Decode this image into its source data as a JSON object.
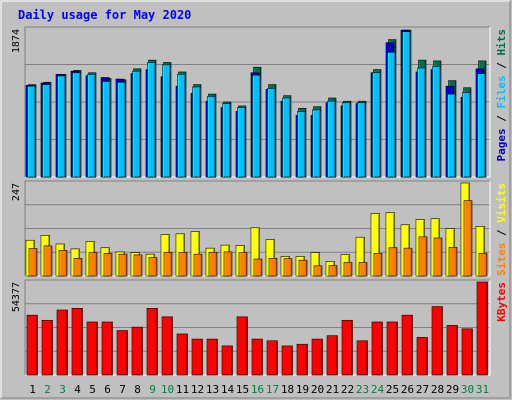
{
  "title": "Daily usage for May 2020",
  "colors": {
    "background": "#c0c0c0",
    "title": "#0000ff",
    "hits": "#006f4f",
    "files": "#00c0ff",
    "pages": "#0000c0",
    "visits": "#ffff00",
    "sites": "#ff8000",
    "kbytes": "#ff0000",
    "weekend_day": "#008040",
    "weekday": "#000000"
  },
  "chart_data": [
    {
      "type": "bar",
      "panel": "top",
      "ymax_label": "1874",
      "ylim": [
        0,
        1874
      ],
      "legend": [
        "Pages",
        "Files",
        "Hits"
      ],
      "legend_separator": " / ",
      "categories": [
        "1",
        "2",
        "3",
        "4",
        "5",
        "6",
        "7",
        "8",
        "9",
        "10",
        "11",
        "12",
        "13",
        "14",
        "15",
        "16",
        "17",
        "18",
        "19",
        "20",
        "21",
        "22",
        "23",
        "24",
        "25",
        "26",
        "27",
        "28",
        "29",
        "30",
        "31"
      ],
      "series": [
        {
          "name": "Hits",
          "values": [
            1170,
            1200,
            1300,
            1350,
            1320,
            1250,
            1230,
            1370,
            1480,
            1450,
            1330,
            1170,
            1050,
            950,
            900,
            1390,
            1170,
            1030,
            870,
            890,
            1000,
            960,
            960,
            1360,
            1740,
            1860,
            1480,
            1470,
            1220,
            1130,
            1470
          ]
        },
        {
          "name": "Files",
          "values": [
            1150,
            1170,
            1280,
            1320,
            1300,
            1210,
            1200,
            1340,
            1450,
            1420,
            1300,
            1140,
            1020,
            930,
            880,
            1290,
            1120,
            1000,
            830,
            850,
            960,
            940,
            940,
            1320,
            1580,
            1840,
            1380,
            1400,
            1050,
            1070,
            1310
          ]
        },
        {
          "name": "Pages",
          "values": [
            1160,
            1190,
            1300,
            1340,
            1280,
            1260,
            1240,
            1310,
            1360,
            1270,
            1150,
            1060,
            960,
            880,
            830,
            1320,
            1110,
            960,
            780,
            780,
            940,
            900,
            930,
            1320,
            1700,
            1860,
            1330,
            1360,
            1150,
            1010,
            1370
          ]
        }
      ]
    },
    {
      "type": "bar",
      "panel": "middle",
      "ymax_label": "247",
      "ylim": [
        0,
        247
      ],
      "legend": [
        "Sites",
        "Visits"
      ],
      "legend_separator": " / ",
      "categories": [
        "1",
        "2",
        "3",
        "4",
        "5",
        "6",
        "7",
        "8",
        "9",
        "10",
        "11",
        "12",
        "13",
        "14",
        "15",
        "16",
        "17",
        "18",
        "19",
        "20",
        "21",
        "22",
        "23",
        "24",
        "25",
        "26",
        "27",
        "28",
        "29",
        "30",
        "31"
      ],
      "series": [
        {
          "name": "Visits",
          "values": [
            95,
            108,
            85,
            72,
            92,
            75,
            64,
            62,
            58,
            110,
            112,
            118,
            74,
            82,
            81,
            128,
            97,
            52,
            52,
            62,
            39,
            57,
            103,
            166,
            168,
            136,
            150,
            152,
            126,
            247,
            132
          ]
        },
        {
          "name": "Sites",
          "values": [
            73,
            80,
            68,
            47,
            62,
            60,
            58,
            56,
            49,
            63,
            63,
            58,
            63,
            64,
            62,
            45,
            47,
            46,
            42,
            27,
            28,
            36,
            36,
            60,
            75,
            74,
            104,
            101,
            76,
            200,
            60
          ]
        }
      ]
    },
    {
      "type": "bar",
      "panel": "bottom",
      "ymax_label": "54377",
      "ylim": [
        0,
        54377
      ],
      "legend": [
        "KBytes"
      ],
      "categories": [
        "1",
        "2",
        "3",
        "4",
        "5",
        "6",
        "7",
        "8",
        "9",
        "10",
        "11",
        "12",
        "13",
        "14",
        "15",
        "16",
        "17",
        "18",
        "19",
        "20",
        "21",
        "22",
        "23",
        "24",
        "25",
        "26",
        "27",
        "28",
        "29",
        "30",
        "31"
      ],
      "series": [
        {
          "name": "KBytes",
          "values": [
            35000,
            32000,
            38000,
            39000,
            31000,
            31000,
            26000,
            28000,
            39000,
            34000,
            24000,
            21000,
            21000,
            17000,
            34000,
            21000,
            20000,
            17000,
            18000,
            21000,
            23000,
            32000,
            20000,
            31000,
            31000,
            35000,
            22000,
            40000,
            29000,
            27000,
            54377
          ]
        }
      ]
    }
  ]
}
